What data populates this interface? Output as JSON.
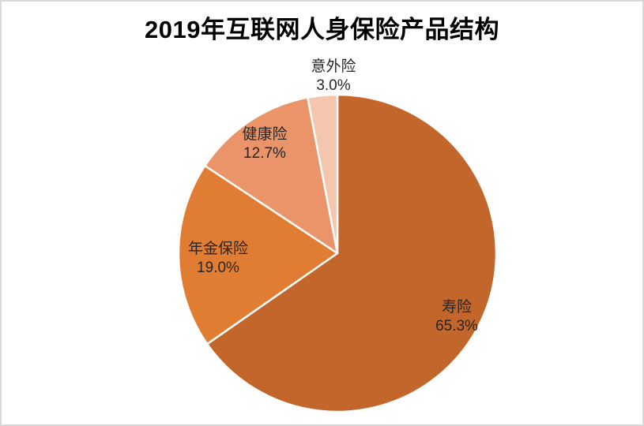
{
  "title": "2019年互联网人身保险产品结构",
  "chart_data": {
    "type": "pie",
    "title": "2019年互联网人身保险产品结构",
    "categories": [
      "寿险",
      "年金保险",
      "健康险",
      "意外险"
    ],
    "values": [
      65.3,
      19.0,
      12.7,
      3.0
    ],
    "unit": "%",
    "start_angle": "12-oclock",
    "direction": "clockwise",
    "legend_position": "none",
    "label_format": "category-name + percentage",
    "slices": [
      {
        "label": "寿险",
        "value_pct": 65.3,
        "pct_label": "65.3%",
        "color": "#C2662B"
      },
      {
        "label": "年金保险",
        "value_pct": 19.0,
        "pct_label": "19.0%",
        "color": "#E17C33"
      },
      {
        "label": "健康险",
        "value_pct": 12.7,
        "pct_label": "12.7%",
        "color": "#EC9469"
      },
      {
        "label": "意外险",
        "value_pct": 3.0,
        "pct_label": "3.0%",
        "color": "#F5C6AE"
      }
    ],
    "slice_border_color": "#FFFFFF",
    "frame_border_color": "#D8D8D8"
  }
}
